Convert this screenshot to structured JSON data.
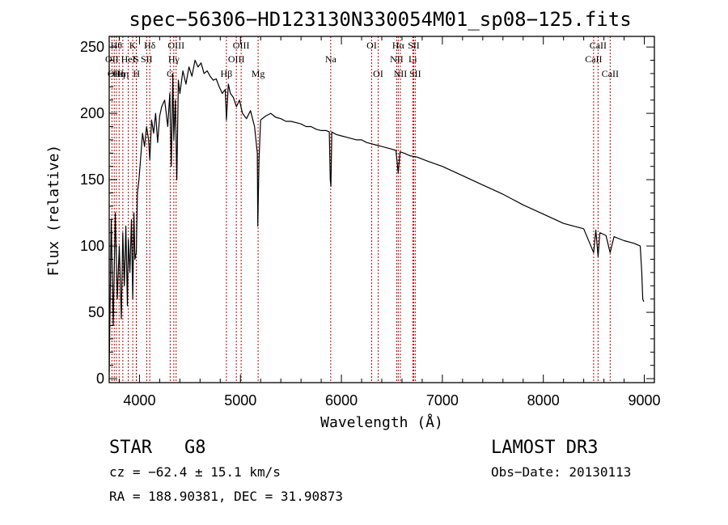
{
  "chart_data": {
    "type": "line",
    "title": "spec−56306−HD123130N330054M01_sp08−125.fits",
    "xlabel": "Wavelength (Å)",
    "ylabel": "Flux (relative)",
    "xlim": [
      3700,
      9100
    ],
    "ylim": [
      -3,
      258
    ],
    "xticks": [
      4000,
      5000,
      6000,
      7000,
      8000,
      9000
    ],
    "yticks": [
      0,
      50,
      100,
      150,
      200,
      250
    ],
    "series": [
      {
        "name": "spectrum",
        "x": [
          3700,
          3720,
          3740,
          3760,
          3780,
          3800,
          3820,
          3835,
          3850,
          3865,
          3880,
          3890,
          3905,
          3920,
          3933,
          3945,
          3955,
          3968,
          3980,
          3995,
          4010,
          4030,
          4050,
          4070,
          4090,
          4102,
          4120,
          4140,
          4160,
          4180,
          4200,
          4220,
          4250,
          4280,
          4300,
          4315,
          4330,
          4340,
          4355,
          4370,
          4385,
          4400,
          4430,
          4460,
          4490,
          4520,
          4550,
          4580,
          4610,
          4640,
          4670,
          4700,
          4730,
          4760,
          4790,
          4820,
          4850,
          4861,
          4880,
          4900,
          4930,
          4960,
          4990,
          5020,
          5060,
          5100,
          5140,
          5167,
          5172,
          5184,
          5200,
          5250,
          5300,
          5350,
          5400,
          5450,
          5500,
          5550,
          5600,
          5650,
          5700,
          5750,
          5800,
          5850,
          5880,
          5890,
          5896,
          5905,
          5950,
          6000,
          6050,
          6100,
          6150,
          6200,
          6250,
          6300,
          6350,
          6400,
          6450,
          6500,
          6540,
          6563,
          6580,
          6620,
          6680,
          6750,
          6850,
          7000,
          7200,
          7400,
          7600,
          7800,
          8000,
          8200,
          8400,
          8498,
          8520,
          8542,
          8560,
          8620,
          8662,
          8700,
          8800,
          8900,
          8960,
          8975,
          8985,
          8995
        ],
        "values": [
          5,
          120,
          40,
          125,
          60,
          100,
          45,
          110,
          70,
          115,
          55,
          105,
          80,
          120,
          60,
          125,
          90,
          95,
          140,
          150,
          165,
          185,
          175,
          190,
          180,
          165,
          195,
          185,
          200,
          178,
          198,
          205,
          210,
          190,
          215,
          160,
          230,
          180,
          210,
          150,
          225,
          215,
          232,
          222,
          235,
          228,
          240,
          235,
          238,
          230,
          232,
          228,
          225,
          226,
          220,
          215,
          218,
          195,
          222,
          215,
          212,
          205,
          210,
          200,
          196,
          202,
          190,
          170,
          115,
          165,
          195,
          198,
          200,
          197,
          196,
          194,
          194,
          193,
          192,
          190,
          190,
          188,
          187,
          187,
          186,
          150,
          145,
          186,
          184,
          183,
          182,
          181,
          180,
          180,
          178,
          177,
          176,
          175,
          174,
          173,
          172,
          155,
          171,
          170,
          168,
          167,
          164,
          160,
          153,
          146,
          139,
          131,
          124,
          117,
          113,
          95,
          112,
          92,
          110,
          108,
          95,
          107,
          104,
          102,
          100,
          80,
          60,
          58
        ]
      }
    ],
    "spectral_lines": [
      {
        "wave": 3727,
        "label": "OII",
        "row": 2
      },
      {
        "wave": 3750,
        "label": "OII",
        "row": 3
      },
      {
        "wave": 3771,
        "label": "Hθ",
        "row": 1
      },
      {
        "wave": 3798,
        "label": "Hη",
        "row": 3
      },
      {
        "wave": 3835,
        "label": "Hη",
        "row": 3
      },
      {
        "wave": 3889,
        "label": "HeI",
        "row": 2
      },
      {
        "wave": 3933,
        "label": "K",
        "row": 1
      },
      {
        "wave": 3968,
        "label": "S",
        "row": 2
      },
      {
        "wave": 3970,
        "label": "H",
        "row": 3
      },
      {
        "wave": 4071,
        "label": "SII",
        "row": 2
      },
      {
        "wave": 4102,
        "label": "Hδ",
        "row": 1
      },
      {
        "wave": 4304,
        "label": "G",
        "row": 3
      },
      {
        "wave": 4340,
        "label": "Hγ",
        "row": 2
      },
      {
        "wave": 4363,
        "label": "OIII",
        "row": 1
      },
      {
        "wave": 4861,
        "label": "Hβ",
        "row": 3
      },
      {
        "wave": 4959,
        "label": "OIII",
        "row": 2
      },
      {
        "wave": 5007,
        "label": "OIII",
        "row": 1
      },
      {
        "wave": 5175,
        "label": "Mg",
        "row": 3
      },
      {
        "wave": 5894,
        "label": "Na",
        "row": 2
      },
      {
        "wave": 6300,
        "label": "OI",
        "row": 1
      },
      {
        "wave": 6364,
        "label": "OI",
        "row": 3
      },
      {
        "wave": 6548,
        "label": "NII",
        "row": 2
      },
      {
        "wave": 6563,
        "label": "Hα",
        "row": 1
      },
      {
        "wave": 6584,
        "label": "NII",
        "row": 3
      },
      {
        "wave": 6707,
        "label": "Li",
        "row": 2
      },
      {
        "wave": 6716,
        "label": "SII",
        "row": 1
      },
      {
        "wave": 6731,
        "label": "SII",
        "row": 3
      },
      {
        "wave": 8498,
        "label": "CaII",
        "row": 2
      },
      {
        "wave": 8542,
        "label": "CaII",
        "row": 1
      },
      {
        "wave": 8662,
        "label": "CaII",
        "row": 3
      }
    ]
  },
  "info": {
    "class_label": "STAR",
    "subclass": "G8",
    "survey": "LAMOST DR3",
    "cz": "cz = −62.4 ± 15.1 km/s",
    "obs_date": "Obs−Date: 20130113",
    "coords": "RA = 188.90381, DEC =  31.90873"
  }
}
